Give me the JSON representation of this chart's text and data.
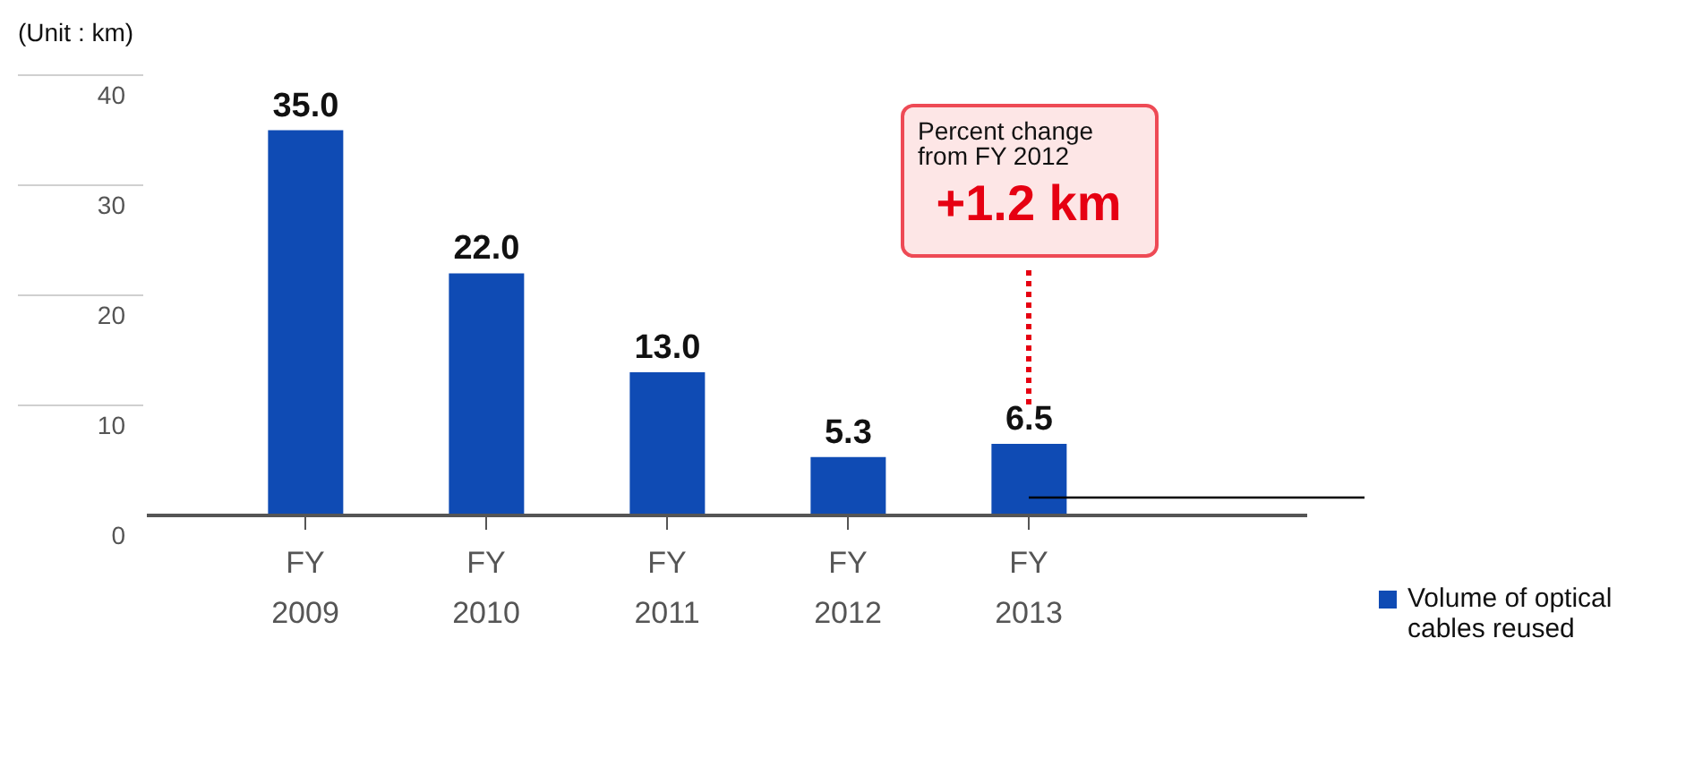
{
  "chart_data": {
    "type": "bar",
    "ylabel": "(Unit : km)",
    "categories": [
      "FY 2009",
      "FY 2010",
      "FY 2011",
      "FY 2012",
      "FY 2013"
    ],
    "series": [
      {
        "name": "Volume of optical cables reused",
        "color": "#0f4bb4",
        "values": [
          35.0,
          22.0,
          13.0,
          5.3,
          6.5
        ],
        "value_labels": [
          "35.0",
          "22.0",
          "13.0",
          "5.3",
          "6.5"
        ]
      }
    ],
    "ylim": [
      0,
      40
    ],
    "yticks": [
      0,
      10,
      20,
      30,
      40
    ],
    "legend": "right",
    "annotations": [
      "Percent change from FY 2012",
      "+1.2 km"
    ]
  }
}
